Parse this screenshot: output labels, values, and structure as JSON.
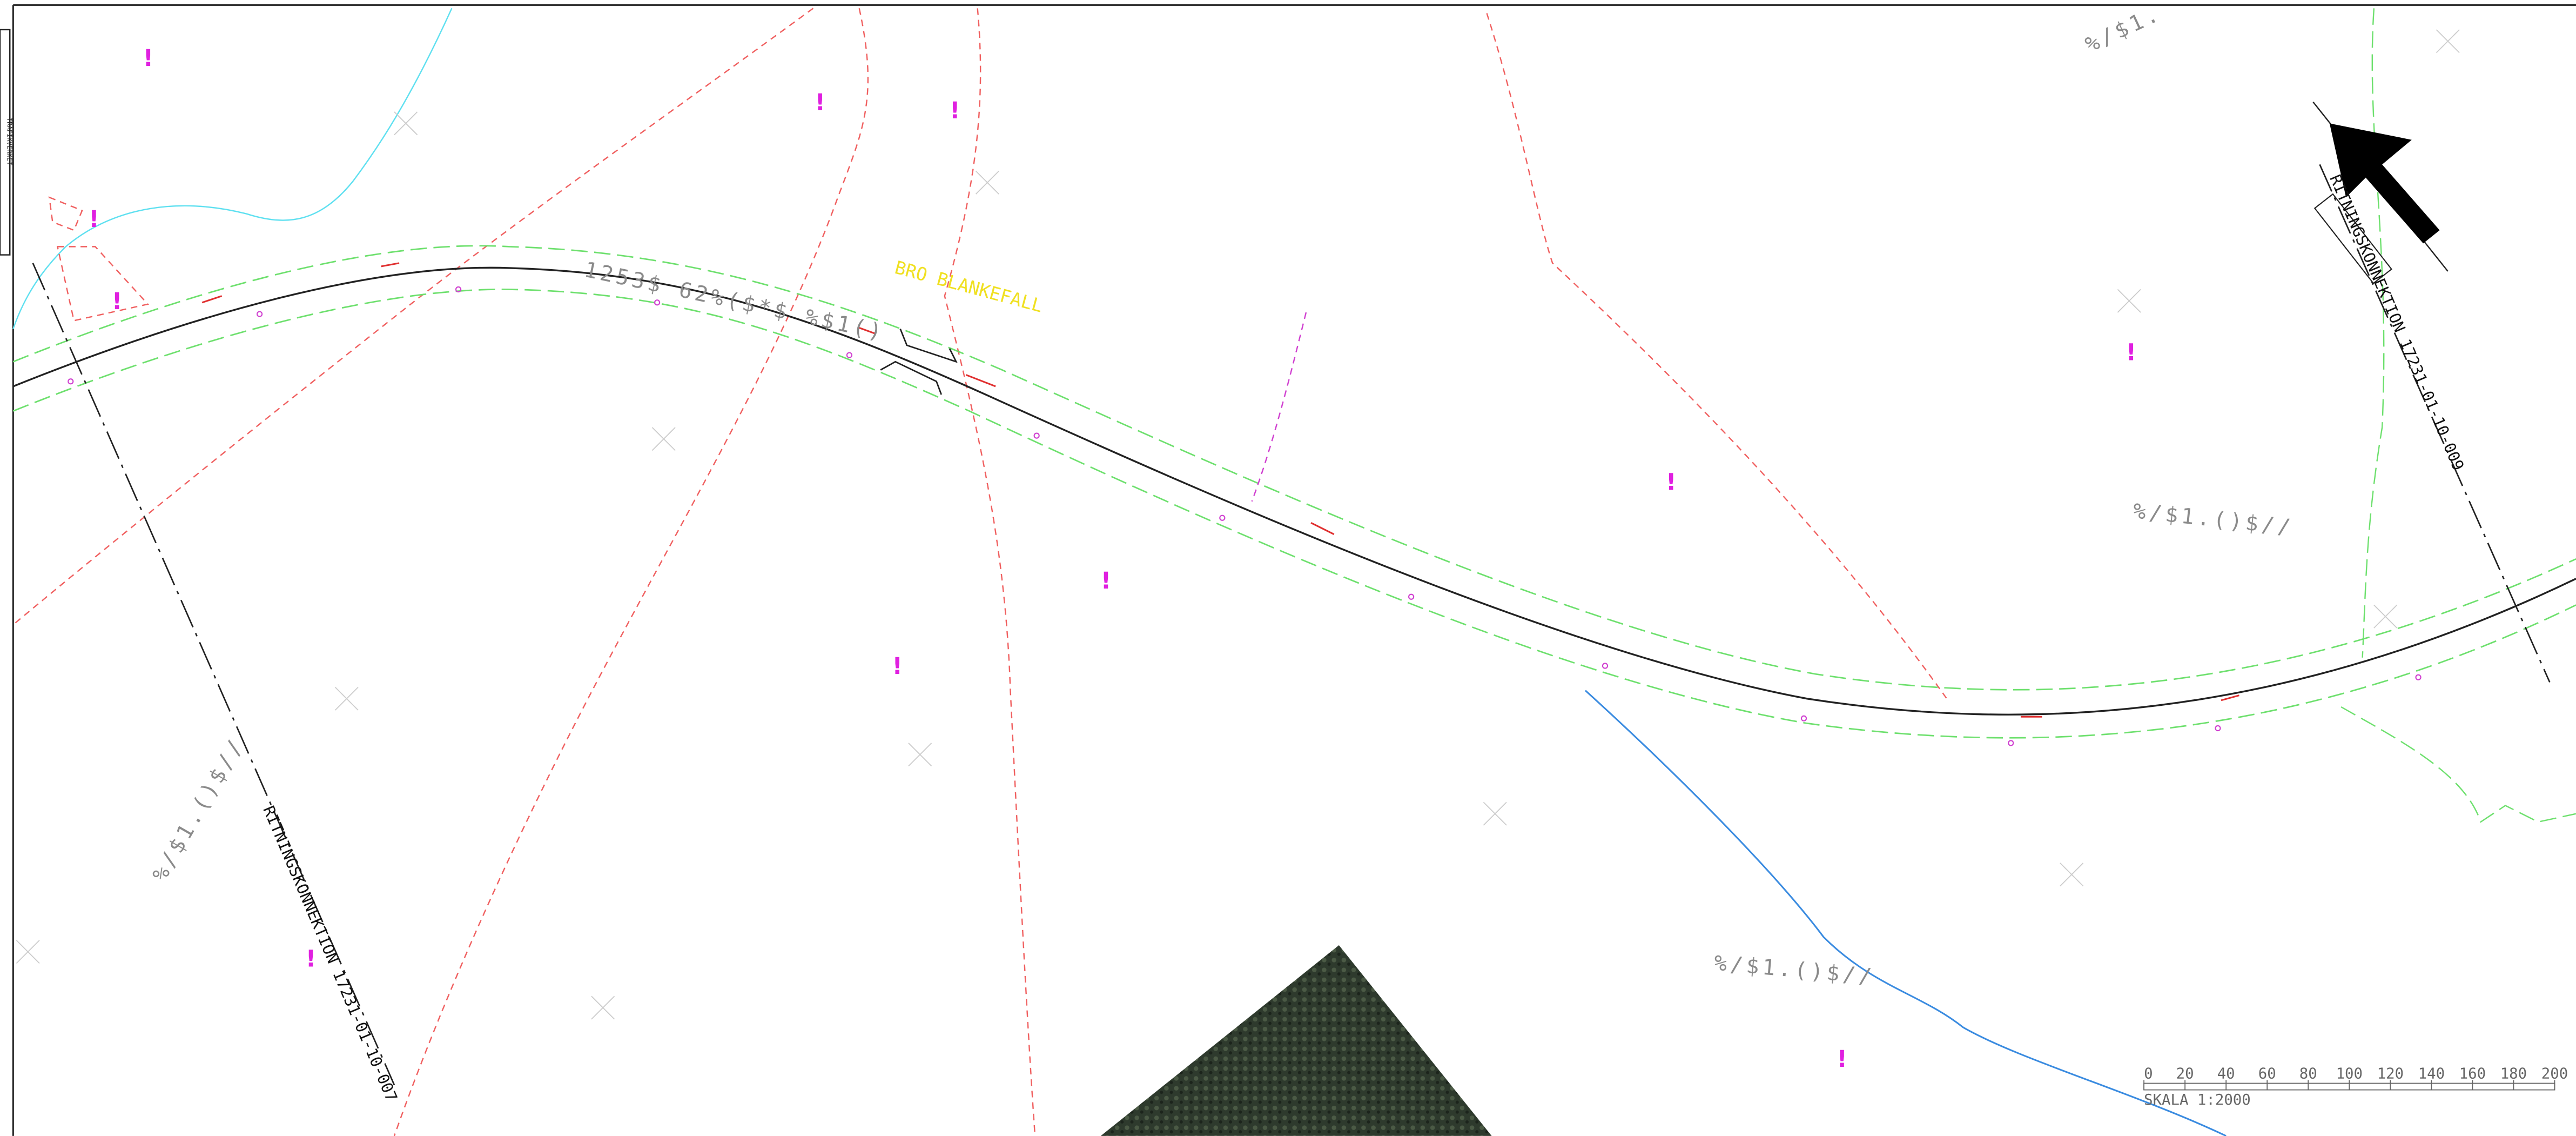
{
  "sheet_label": "TRAFIKVERKET",
  "bridge_label": "BRO BLANKEFALL",
  "road_label": "1253$ 62%($*$ %$1()",
  "area_labels": [
    "%/$1.",
    "%/$1.()$//",
    "%/$1.()$//",
    "%/$1.()$//"
  ],
  "warning_marker": "!",
  "match_lines": [
    {
      "label": "RITNINGSKONNEKTION 17231-01-10-007"
    },
    {
      "label": "RITNINGSKONNEKTION 17231-01-10-009"
    }
  ],
  "scale_bar": {
    "ticks": [
      0,
      20,
      40,
      60,
      80,
      100,
      120,
      140,
      160,
      180,
      200
    ],
    "label": "SKALA 1:2000"
  }
}
